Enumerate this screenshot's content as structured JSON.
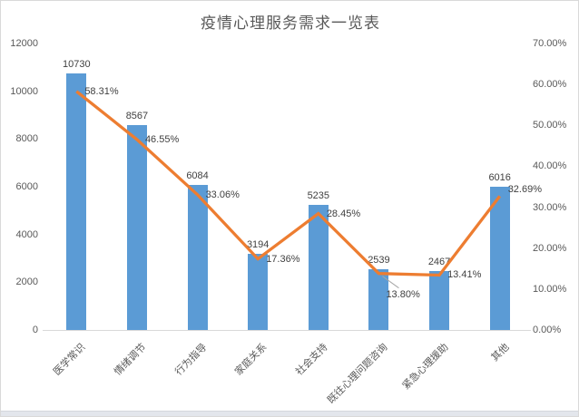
{
  "chart_data": {
    "type": "bar+line",
    "title": "疫情心理服务需求一览表",
    "legend": "none",
    "gridlines": false,
    "categories": [
      "医学常识",
      "情绪调节",
      "行为指导",
      "家庭关系",
      "社会支持",
      "既往心理问题咨询",
      "紧急心理援助",
      "其他"
    ],
    "series": [
      {
        "type": "bar",
        "axis": "left",
        "color": "#5B9BD5",
        "values": [
          10730,
          8567,
          6084,
          3194,
          5235,
          2539,
          2467,
          6016
        ],
        "labels": [
          "10730",
          "8567",
          "6084",
          "3194",
          "5235",
          "2539",
          "2467",
          "6016"
        ]
      },
      {
        "type": "line",
        "axis": "right",
        "color": "#ED7D31",
        "values": [
          58.31,
          46.55,
          33.06,
          17.36,
          28.45,
          13.8,
          13.41,
          32.69
        ],
        "point_labels": [
          {
            "text": "58.31%"
          },
          {
            "text": "46.55%"
          },
          {
            "text": "33.06%"
          },
          {
            "text": "17.36%"
          },
          {
            "text": "28.45%"
          },
          {
            "text": "13.80%",
            "placement": "below-leader"
          },
          {
            "text": "13.41%"
          },
          {
            "text": "32.69%",
            "dy": -7
          }
        ]
      }
    ],
    "left_axis": {
      "min": 0,
      "max": 12000,
      "step": 2000,
      "ticks": [
        "0",
        "2000",
        "4000",
        "6000",
        "8000",
        "10000",
        "12000"
      ]
    },
    "right_axis": {
      "min": 0,
      "max": 70,
      "step": 10,
      "ticks": [
        "0.00%",
        "10.00%",
        "20.00%",
        "30.00%",
        "40.00%",
        "50.00%",
        "60.00%",
        "70.00%"
      ]
    },
    "colors": {
      "bar": "#5B9BD5",
      "line": "#ED7D31",
      "axis_text": "#595959",
      "data_label": "#404040",
      "axis_line": "#d9d9d9",
      "leader_line": "#a6a6a6"
    }
  }
}
